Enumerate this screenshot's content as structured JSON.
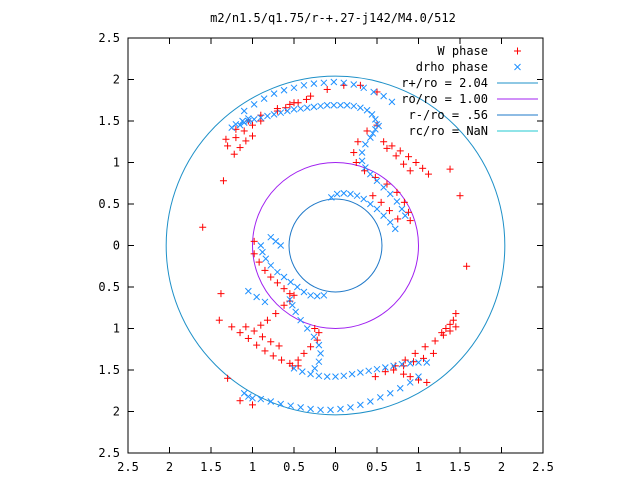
{
  "chart_data": {
    "type": "scatter",
    "title": "m2/n1.5/q1.75/r-+.27-j142/M4.0/512",
    "xlabel": "",
    "ylabel": "",
    "xlim": [
      -2.5,
      2.5
    ],
    "ylim": [
      -2.5,
      2.5
    ],
    "x_ticks": [
      "2.5",
      "2",
      "1.5",
      "1",
      "0.5",
      "0",
      "0.5",
      "1",
      "1.5",
      "2",
      "2.5"
    ],
    "y_ticks": [
      "2.5",
      "2",
      "1.5",
      "1",
      "0.5",
      "0",
      "0.5",
      "1",
      "1.5",
      "2",
      "2.5"
    ],
    "x_tick_values": [
      -2.5,
      -2,
      -1.5,
      -1,
      -0.5,
      0,
      0.5,
      1,
      1.5,
      2,
      2.5
    ],
    "y_tick_values": [
      2.5,
      2,
      1.5,
      1,
      0.5,
      0,
      -0.5,
      -1,
      -1.5,
      -2,
      -2.5
    ],
    "grid": false,
    "legend_position": "top-right",
    "series": [
      {
        "name": "W phase",
        "marker": "plus",
        "color": "#ff0000",
        "points": [
          [
            -1.32,
            1.28
          ],
          [
            -1.2,
            1.4
          ],
          [
            -1.05,
            1.5
          ],
          [
            -0.9,
            1.57
          ],
          [
            -0.7,
            1.65
          ],
          [
            -0.5,
            1.72
          ],
          [
            -0.3,
            1.8
          ],
          [
            -0.1,
            1.88
          ],
          [
            0.1,
            1.93
          ],
          [
            0.3,
            1.93
          ],
          [
            0.5,
            1.85
          ],
          [
            -1.3,
            1.2
          ],
          [
            -1.2,
            1.3
          ],
          [
            -1.1,
            1.38
          ],
          [
            -1.0,
            1.45
          ],
          [
            -0.9,
            1.5
          ],
          [
            -1.22,
            1.1
          ],
          [
            -1.15,
            1.18
          ],
          [
            -1.08,
            1.26
          ],
          [
            -1.0,
            1.32
          ],
          [
            -1.35,
            0.78
          ],
          [
            -1.6,
            0.22
          ],
          [
            0.5,
            1.45
          ],
          [
            0.38,
            1.38
          ],
          [
            0.27,
            1.25
          ],
          [
            0.22,
            1.12
          ],
          [
            0.25,
            1.0
          ],
          [
            0.35,
            0.9
          ],
          [
            0.48,
            0.82
          ],
          [
            0.62,
            0.74
          ],
          [
            0.74,
            0.64
          ],
          [
            0.83,
            0.52
          ],
          [
            0.88,
            0.4
          ],
          [
            0.9,
            0.3
          ],
          [
            0.58,
            1.25
          ],
          [
            0.68,
            1.2
          ],
          [
            0.78,
            1.14
          ],
          [
            0.88,
            1.07
          ],
          [
            0.97,
            1.0
          ],
          [
            1.05,
            0.93
          ],
          [
            1.12,
            0.86
          ],
          [
            0.62,
            1.17
          ],
          [
            0.73,
            1.08
          ],
          [
            0.82,
            0.98
          ],
          [
            0.9,
            0.9
          ],
          [
            1.38,
            0.92
          ],
          [
            1.5,
            0.6
          ],
          [
            1.58,
            -0.25
          ],
          [
            0.45,
            0.6
          ],
          [
            0.55,
            0.52
          ],
          [
            0.65,
            0.42
          ],
          [
            0.75,
            0.32
          ],
          [
            -0.98,
            0.05
          ],
          [
            -0.98,
            -0.1
          ],
          [
            -0.92,
            -0.2
          ],
          [
            -0.85,
            -0.3
          ],
          [
            -0.78,
            -0.38
          ],
          [
            -0.7,
            -0.45
          ],
          [
            -0.62,
            -0.52
          ],
          [
            -0.55,
            -0.58
          ],
          [
            -0.5,
            -0.6
          ],
          [
            -0.55,
            -0.67
          ],
          [
            -0.62,
            -0.72
          ],
          [
            -0.72,
            -0.82
          ],
          [
            -0.82,
            -0.9
          ],
          [
            -0.9,
            -0.96
          ],
          [
            -1.38,
            -0.58
          ],
          [
            -1.4,
            -0.9
          ],
          [
            -1.3,
            -1.6
          ],
          [
            -1.15,
            -1.87
          ],
          [
            -1.0,
            -1.92
          ],
          [
            -1.25,
            -0.98
          ],
          [
            -1.15,
            -1.05
          ],
          [
            -1.05,
            -1.12
          ],
          [
            -0.95,
            -1.2
          ],
          [
            -0.85,
            -1.27
          ],
          [
            -0.75,
            -1.33
          ],
          [
            -0.65,
            -1.38
          ],
          [
            -0.55,
            -1.42
          ],
          [
            -0.45,
            -1.45
          ],
          [
            -1.08,
            -0.98
          ],
          [
            -0.98,
            -1.03
          ],
          [
            -0.88,
            -1.1
          ],
          [
            -0.78,
            -1.16
          ],
          [
            -0.68,
            -1.21
          ],
          [
            -0.22,
            -1.14
          ],
          [
            -0.3,
            -1.22
          ],
          [
            -0.38,
            -1.3
          ],
          [
            -0.45,
            -1.38
          ],
          [
            -0.52,
            -1.45
          ],
          [
            0.48,
            -1.58
          ],
          [
            0.6,
            -1.52
          ],
          [
            0.72,
            -1.45
          ],
          [
            0.84,
            -1.38
          ],
          [
            0.96,
            -1.3
          ],
          [
            1.08,
            -1.22
          ],
          [
            1.2,
            -1.15
          ],
          [
            1.3,
            -1.08
          ],
          [
            1.38,
            -1.03
          ],
          [
            1.45,
            -0.98
          ],
          [
            0.7,
            -1.5
          ],
          [
            0.82,
            -1.45
          ],
          [
            0.94,
            -1.4
          ],
          [
            1.06,
            -1.36
          ],
          [
            1.18,
            -1.3
          ],
          [
            1.28,
            -1.05
          ],
          [
            1.33,
            -1.0
          ],
          [
            1.38,
            -0.95
          ],
          [
            1.42,
            -0.9
          ],
          [
            1.45,
            -0.82
          ],
          [
            0.82,
            -1.55
          ],
          [
            0.9,
            -1.58
          ],
          [
            1.0,
            -1.62
          ],
          [
            1.1,
            -1.65
          ],
          [
            -0.7,
            1.62
          ],
          [
            -0.6,
            1.66
          ],
          [
            -0.55,
            1.7
          ],
          [
            -0.45,
            1.72
          ],
          [
            -0.35,
            1.76
          ],
          [
            -0.25,
            -1.0
          ],
          [
            -0.2,
            -1.05
          ]
        ]
      },
      {
        "name": "drho phase",
        "marker": "cross",
        "color": "#1e90ff",
        "points": [
          [
            -1.15,
            1.45
          ],
          [
            -1.1,
            1.48
          ],
          [
            -1.05,
            1.5
          ],
          [
            -0.98,
            1.52
          ],
          [
            -0.9,
            1.54
          ],
          [
            -0.82,
            1.56
          ],
          [
            -0.74,
            1.58
          ],
          [
            -0.66,
            1.6
          ],
          [
            -0.58,
            1.62
          ],
          [
            -0.5,
            1.64
          ],
          [
            -0.42,
            1.65
          ],
          [
            -0.34,
            1.66
          ],
          [
            -0.26,
            1.67
          ],
          [
            -0.18,
            1.68
          ],
          [
            -0.1,
            1.69
          ],
          [
            -0.02,
            1.69
          ],
          [
            0.06,
            1.69
          ],
          [
            0.14,
            1.69
          ],
          [
            0.22,
            1.68
          ],
          [
            0.3,
            1.66
          ],
          [
            0.38,
            1.63
          ],
          [
            0.44,
            1.58
          ],
          [
            0.48,
            1.52
          ],
          [
            0.5,
            1.46
          ],
          [
            -1.1,
            1.62
          ],
          [
            -0.98,
            1.7
          ],
          [
            -0.86,
            1.77
          ],
          [
            -0.74,
            1.83
          ],
          [
            -0.62,
            1.87
          ],
          [
            -0.5,
            1.9
          ],
          [
            -0.38,
            1.93
          ],
          [
            -0.26,
            1.95
          ],
          [
            -0.14,
            1.96
          ],
          [
            -0.02,
            1.97
          ],
          [
            0.1,
            1.96
          ],
          [
            0.22,
            1.94
          ],
          [
            0.34,
            1.9
          ],
          [
            0.46,
            1.85
          ],
          [
            0.58,
            1.8
          ],
          [
            0.68,
            1.73
          ],
          [
            -1.25,
            1.42
          ],
          [
            -1.2,
            1.46
          ],
          [
            -1.12,
            1.5
          ],
          [
            -1.05,
            1.53
          ],
          [
            0.42,
            1.3
          ],
          [
            0.36,
            1.22
          ],
          [
            0.32,
            1.12
          ],
          [
            0.32,
            1.02
          ],
          [
            0.36,
            0.94
          ],
          [
            0.42,
            0.86
          ],
          [
            0.5,
            0.78
          ],
          [
            0.58,
            0.7
          ],
          [
            0.66,
            0.62
          ],
          [
            0.74,
            0.53
          ],
          [
            0.8,
            0.44
          ],
          [
            0.84,
            0.36
          ],
          [
            0.52,
            1.44
          ],
          [
            0.48,
            1.4
          ],
          [
            0.45,
            1.35
          ],
          [
            -0.05,
            0.58
          ],
          [
            0.02,
            0.62
          ],
          [
            0.1,
            0.63
          ],
          [
            0.18,
            0.62
          ],
          [
            0.26,
            0.6
          ],
          [
            0.34,
            0.56
          ],
          [
            0.42,
            0.5
          ],
          [
            0.5,
            0.44
          ],
          [
            0.58,
            0.36
          ],
          [
            0.66,
            0.28
          ],
          [
            0.72,
            0.2
          ],
          [
            -0.9,
            0.0
          ],
          [
            -0.88,
            -0.08
          ],
          [
            -0.84,
            -0.16
          ],
          [
            -0.78,
            -0.24
          ],
          [
            -0.7,
            -0.32
          ],
          [
            -0.62,
            -0.38
          ],
          [
            -0.54,
            -0.44
          ],
          [
            -0.46,
            -0.5
          ],
          [
            -0.38,
            -0.56
          ],
          [
            -0.3,
            -0.6
          ],
          [
            -0.22,
            -0.61
          ],
          [
            -0.14,
            -0.6
          ],
          [
            -0.55,
            -0.65
          ],
          [
            -0.52,
            -0.72
          ],
          [
            -0.48,
            -0.8
          ],
          [
            -0.42,
            -0.9
          ],
          [
            -0.34,
            -1.0
          ],
          [
            -0.26,
            -1.1
          ],
          [
            -0.2,
            -1.2
          ],
          [
            -0.18,
            -1.3
          ],
          [
            -0.2,
            -1.4
          ],
          [
            -0.25,
            -1.48
          ],
          [
            -0.78,
            0.1
          ],
          [
            -0.72,
            0.05
          ],
          [
            -0.66,
            0.0
          ],
          [
            -1.05,
            -0.55
          ],
          [
            -0.95,
            -0.62
          ],
          [
            -0.85,
            -0.68
          ],
          [
            -0.5,
            -1.48
          ],
          [
            -0.4,
            -1.52
          ],
          [
            -0.3,
            -1.55
          ],
          [
            -0.2,
            -1.57
          ],
          [
            -0.1,
            -1.58
          ],
          [
            0.0,
            -1.58
          ],
          [
            0.1,
            -1.57
          ],
          [
            0.2,
            -1.55
          ],
          [
            0.3,
            -1.53
          ],
          [
            0.4,
            -1.51
          ],
          [
            0.5,
            -1.49
          ],
          [
            0.6,
            -1.47
          ],
          [
            0.7,
            -1.45
          ],
          [
            0.8,
            -1.43
          ],
          [
            0.9,
            -1.42
          ],
          [
            1.0,
            -1.41
          ],
          [
            1.1,
            -1.41
          ],
          [
            -0.9,
            -1.85
          ],
          [
            -0.78,
            -1.88
          ],
          [
            -0.66,
            -1.91
          ],
          [
            -0.54,
            -1.93
          ],
          [
            -0.42,
            -1.95
          ],
          [
            -0.3,
            -1.97
          ],
          [
            -0.18,
            -1.98
          ],
          [
            -0.06,
            -1.98
          ],
          [
            0.06,
            -1.97
          ],
          [
            0.18,
            -1.95
          ],
          [
            0.3,
            -1.92
          ],
          [
            0.42,
            -1.88
          ],
          [
            0.54,
            -1.83
          ],
          [
            0.66,
            -1.78
          ],
          [
            0.78,
            -1.72
          ],
          [
            0.9,
            -1.65
          ],
          [
            1.0,
            -1.58
          ],
          [
            -1.1,
            -1.78
          ],
          [
            -1.05,
            -1.82
          ],
          [
            -1.0,
            -1.84
          ]
        ]
      }
    ],
    "circles": [
      {
        "name": "r+/ro = 2.04",
        "radius": 2.04,
        "color": "#1e90c8"
      },
      {
        "name": "ro/ro = 1.00",
        "radius": 1.0,
        "color": "#a020f0"
      },
      {
        "name": "r-/ro = .56",
        "radius": 0.56,
        "color": "#1e78c8"
      },
      {
        "name": "rc/ro = NaN",
        "radius": null,
        "color": "#20c8d0"
      }
    ]
  }
}
